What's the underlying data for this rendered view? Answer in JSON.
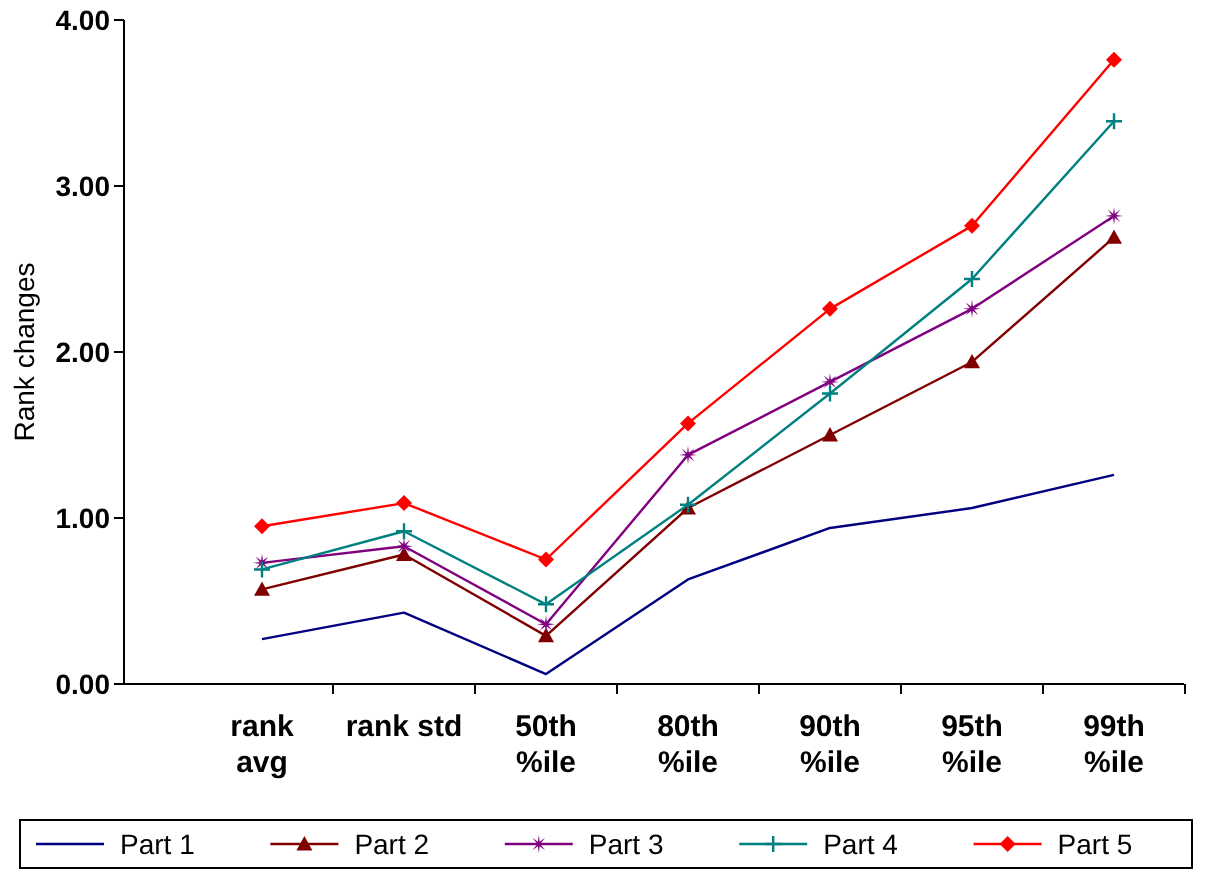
{
  "chart_data": {
    "type": "line",
    "ylabel": "Rank changes",
    "categories": [
      "rank\navg",
      "rank std",
      "50th\n%ile",
      "80th\n%ile",
      "90th\n%ile",
      "95th\n%ile",
      "99th\n%ile"
    ],
    "ylim": [
      0,
      4
    ],
    "yticks": [
      {
        "value": 0,
        "label": "0.00"
      },
      {
        "value": 1,
        "label": "1.00"
      },
      {
        "value": 2,
        "label": "2.00"
      },
      {
        "value": 3,
        "label": "3.00"
      },
      {
        "value": 4,
        "label": "4.00"
      }
    ],
    "grid": false,
    "legend": "bottom",
    "series": [
      {
        "name": "Part 1",
        "color": "#000080",
        "marker": "none",
        "values": [
          0.27,
          0.43,
          0.06,
          0.63,
          0.94,
          1.06,
          1.26
        ]
      },
      {
        "name": "Part 2",
        "color": "#800000",
        "marker": "triangle",
        "values": [
          0.57,
          0.78,
          0.29,
          1.06,
          1.5,
          1.94,
          2.69
        ]
      },
      {
        "name": "Part 3",
        "color": "#800080",
        "marker": "star",
        "values": [
          0.73,
          0.83,
          0.36,
          1.38,
          1.82,
          2.26,
          2.82
        ]
      },
      {
        "name": "Part 4",
        "color": "#008080",
        "marker": "cross",
        "values": [
          0.69,
          0.92,
          0.48,
          1.08,
          1.75,
          2.44,
          3.39
        ]
      },
      {
        "name": "Part 5",
        "color": "#ff0000",
        "marker": "diamond",
        "values": [
          0.95,
          1.09,
          0.75,
          1.57,
          2.26,
          2.76,
          3.76
        ]
      }
    ]
  }
}
